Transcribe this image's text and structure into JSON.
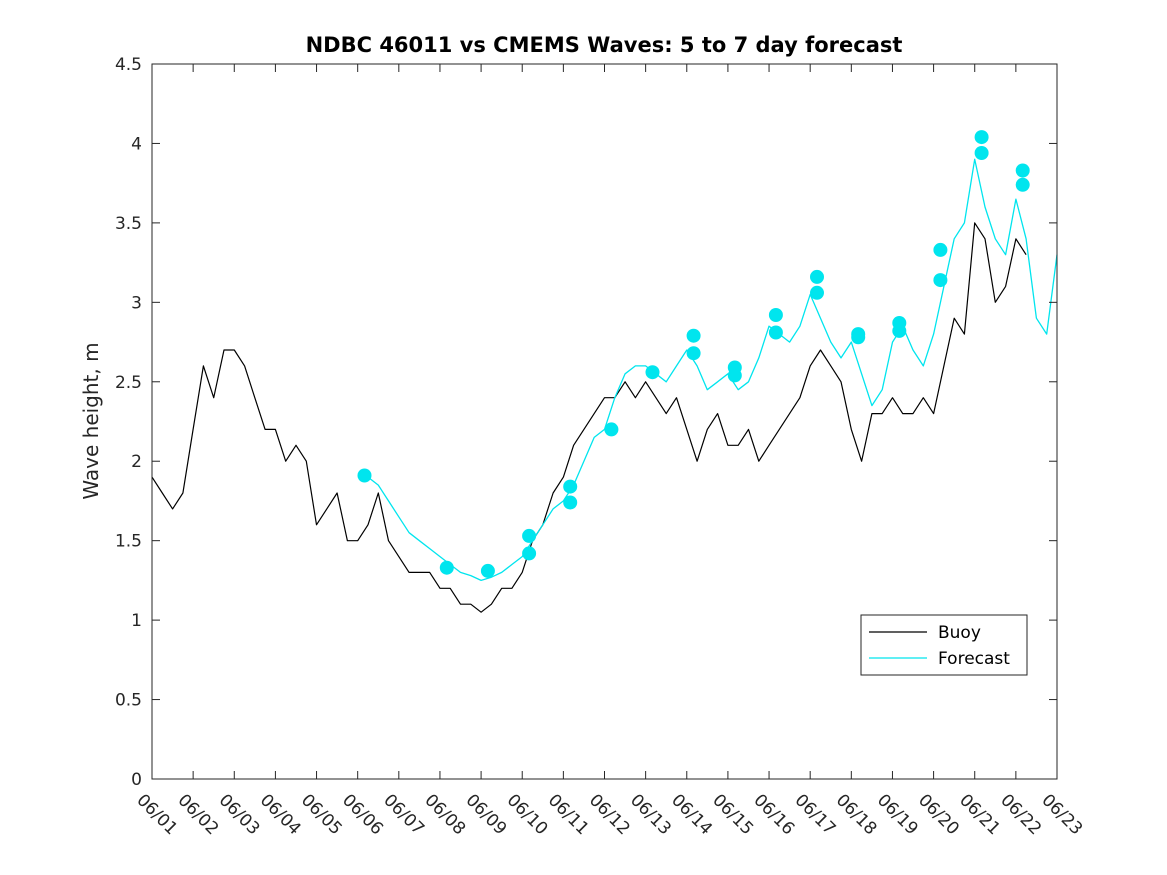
{
  "chart_data": {
    "type": "line",
    "title": "NDBC 46011 vs CMEMS Waves: 5 to 7 day forecast",
    "ylabel": "Wave height, m",
    "xlabel": "",
    "x_is_date": true,
    "xlim": [
      "06/01",
      "06/23"
    ],
    "ylim": [
      0,
      4.5
    ],
    "x_tick_labels": [
      "06/01",
      "06/02",
      "06/03",
      "06/04",
      "06/05",
      "06/06",
      "06/07",
      "06/08",
      "06/09",
      "06/10",
      "06/11",
      "06/12",
      "06/13",
      "06/14",
      "06/15",
      "06/16",
      "06/17",
      "06/18",
      "06/19",
      "06/20",
      "06/21",
      "06/22",
      "06/23"
    ],
    "y_tick_labels": [
      "0",
      "0.5",
      "1",
      "1.5",
      "2",
      "2.5",
      "3",
      "3.5",
      "4",
      "4.5"
    ],
    "grid": false,
    "legend": {
      "position": "bottom-right",
      "entries": [
        {
          "label": "Buoy",
          "color": "#000000"
        },
        {
          "label": "Forecast",
          "color": "#00e5ee"
        }
      ]
    },
    "series": [
      {
        "name": "Buoy",
        "color": "#000000",
        "x": [
          "06/01 00:00",
          "06/01 06:00",
          "06/01 12:00",
          "06/01 18:00",
          "06/02 00:00",
          "06/02 06:00",
          "06/02 12:00",
          "06/02 18:00",
          "06/03 00:00",
          "06/03 06:00",
          "06/03 12:00",
          "06/03 18:00",
          "06/04 00:00",
          "06/04 06:00",
          "06/04 12:00",
          "06/04 18:00",
          "06/05 00:00",
          "06/05 06:00",
          "06/05 12:00",
          "06/05 18:00",
          "06/06 00:00",
          "06/06 06:00",
          "06/06 12:00",
          "06/06 18:00",
          "06/07 00:00",
          "06/07 06:00",
          "06/07 12:00",
          "06/07 18:00",
          "06/08 00:00",
          "06/08 06:00",
          "06/08 12:00",
          "06/08 18:00",
          "06/09 00:00",
          "06/09 06:00",
          "06/09 12:00",
          "06/09 18:00",
          "06/10 00:00",
          "06/10 06:00",
          "06/10 12:00",
          "06/10 18:00",
          "06/11 00:00",
          "06/11 06:00",
          "06/11 12:00",
          "06/11 18:00",
          "06/12 00:00",
          "06/12 06:00",
          "06/12 12:00",
          "06/12 18:00",
          "06/13 00:00",
          "06/13 06:00",
          "06/13 12:00",
          "06/13 18:00",
          "06/14 00:00",
          "06/14 06:00",
          "06/14 12:00",
          "06/14 18:00",
          "06/15 00:00",
          "06/15 06:00",
          "06/15 12:00",
          "06/15 18:00",
          "06/16 00:00",
          "06/16 06:00",
          "06/16 12:00",
          "06/16 18:00",
          "06/17 00:00",
          "06/17 06:00",
          "06/17 12:00",
          "06/17 18:00",
          "06/18 00:00",
          "06/18 06:00",
          "06/18 12:00",
          "06/18 18:00",
          "06/19 00:00",
          "06/19 06:00",
          "06/19 12:00",
          "06/19 18:00",
          "06/20 00:00",
          "06/20 06:00",
          "06/20 12:00",
          "06/20 18:00",
          "06/21 00:00",
          "06/21 06:00",
          "06/21 12:00",
          "06/21 18:00",
          "06/22 00:00",
          "06/22 06:00",
          "06/22 12:00",
          "06/22 18:00",
          "06/23 00:00"
        ],
        "y": [
          1.9,
          1.8,
          1.7,
          1.8,
          2.2,
          2.6,
          2.4,
          2.7,
          2.7,
          2.6,
          2.4,
          2.2,
          2.2,
          2.0,
          2.1,
          2.0,
          1.6,
          1.7,
          1.8,
          1.5,
          1.5,
          1.6,
          1.8,
          1.5,
          1.4,
          1.3,
          1.3,
          1.3,
          1.2,
          1.2,
          1.1,
          1.1,
          1.05,
          1.1,
          1.2,
          1.2,
          1.3,
          1.5,
          1.6,
          1.8,
          1.9,
          2.1,
          2.2,
          2.3,
          2.4,
          2.4,
          2.5,
          2.4,
          2.5,
          2.4,
          2.3,
          2.4,
          2.2,
          2.0,
          2.2,
          2.3,
          2.1,
          2.1,
          2.2,
          2.0,
          2.1,
          2.2,
          2.3,
          2.4,
          2.6,
          2.7,
          2.6,
          2.5,
          2.2,
          2.0,
          2.3,
          2.3,
          2.4,
          2.3,
          2.3,
          2.4,
          2.3,
          2.6,
          2.9,
          2.8,
          3.5,
          3.4,
          3.0,
          3.1,
          3.4,
          3.3,
          null,
          null,
          null
        ]
      },
      {
        "name": "Forecast",
        "color": "#00e5ee",
        "x": [
          "06/06 00:00",
          "06/06 06:00",
          "06/06 12:00",
          "06/06 18:00",
          "06/07 00:00",
          "06/07 06:00",
          "06/07 12:00",
          "06/07 18:00",
          "06/08 00:00",
          "06/08 06:00",
          "06/08 12:00",
          "06/08 18:00",
          "06/09 00:00",
          "06/09 06:00",
          "06/09 12:00",
          "06/09 18:00",
          "06/10 00:00",
          "06/10 06:00",
          "06/10 12:00",
          "06/10 18:00",
          "06/11 00:00",
          "06/11 06:00",
          "06/11 12:00",
          "06/11 18:00",
          "06/12 00:00",
          "06/12 06:00",
          "06/12 12:00",
          "06/12 18:00",
          "06/13 00:00",
          "06/13 06:00",
          "06/13 12:00",
          "06/13 18:00",
          "06/14 00:00",
          "06/14 06:00",
          "06/14 12:00",
          "06/14 18:00",
          "06/15 00:00",
          "06/15 06:00",
          "06/15 12:00",
          "06/15 18:00",
          "06/16 00:00",
          "06/16 06:00",
          "06/16 12:00",
          "06/16 18:00",
          "06/17 00:00",
          "06/17 06:00",
          "06/17 12:00",
          "06/17 18:00",
          "06/18 00:00",
          "06/18 06:00",
          "06/18 12:00",
          "06/18 18:00",
          "06/19 00:00",
          "06/19 06:00",
          "06/19 12:00",
          "06/19 18:00",
          "06/20 00:00",
          "06/20 06:00",
          "06/20 12:00",
          "06/20 18:00",
          "06/21 00:00",
          "06/21 06:00",
          "06/21 12:00",
          "06/21 18:00",
          "06/22 00:00",
          "06/22 06:00",
          "06/22 12:00",
          "06/22 18:00",
          "06/23 00:00"
        ],
        "y": [
          null,
          1.9,
          1.85,
          1.75,
          1.65,
          1.55,
          1.5,
          1.45,
          1.4,
          1.35,
          1.3,
          1.28,
          1.25,
          1.27,
          1.3,
          1.35,
          1.4,
          1.5,
          1.6,
          1.7,
          1.75,
          1.85,
          2.0,
          2.15,
          2.2,
          2.4,
          2.55,
          2.6,
          2.6,
          2.55,
          2.5,
          2.6,
          2.7,
          2.6,
          2.45,
          2.5,
          2.55,
          2.45,
          2.5,
          2.65,
          2.85,
          2.8,
          2.75,
          2.85,
          3.05,
          2.9,
          2.75,
          2.65,
          2.75,
          2.55,
          2.35,
          2.45,
          2.75,
          2.85,
          2.7,
          2.6,
          2.8,
          3.1,
          3.4,
          3.5,
          3.9,
          3.6,
          3.4,
          3.3,
          3.65,
          3.4,
          2.9,
          2.8,
          3.3
        ]
      }
    ],
    "markers": {
      "series": "Forecast",
      "color": "#00e5ee",
      "points": [
        {
          "x": "06/06 04:00",
          "y": 1.91
        },
        {
          "x": "06/08 04:00",
          "y": 1.33
        },
        {
          "x": "06/09 04:00",
          "y": 1.31
        },
        {
          "x": "06/10 04:00",
          "y": 1.42
        },
        {
          "x": "06/10 04:00",
          "y": 1.53
        },
        {
          "x": "06/11 04:00",
          "y": 1.74
        },
        {
          "x": "06/11 04:00",
          "y": 1.84
        },
        {
          "x": "06/12 04:00",
          "y": 2.2
        },
        {
          "x": "06/13 04:00",
          "y": 2.56
        },
        {
          "x": "06/14 04:00",
          "y": 2.68
        },
        {
          "x": "06/14 04:00",
          "y": 2.79
        },
        {
          "x": "06/15 04:00",
          "y": 2.54
        },
        {
          "x": "06/15 04:00",
          "y": 2.59
        },
        {
          "x": "06/16 04:00",
          "y": 2.81
        },
        {
          "x": "06/16 04:00",
          "y": 2.92
        },
        {
          "x": "06/17 04:00",
          "y": 3.06
        },
        {
          "x": "06/17 04:00",
          "y": 3.16
        },
        {
          "x": "06/18 04:00",
          "y": 2.78
        },
        {
          "x": "06/18 04:00",
          "y": 2.8
        },
        {
          "x": "06/19 04:00",
          "y": 2.82
        },
        {
          "x": "06/19 04:00",
          "y": 2.87
        },
        {
          "x": "06/20 04:00",
          "y": 3.14
        },
        {
          "x": "06/20 04:00",
          "y": 3.33
        },
        {
          "x": "06/21 04:00",
          "y": 3.94
        },
        {
          "x": "06/21 04:00",
          "y": 4.04
        },
        {
          "x": "06/22 04:00",
          "y": 3.74
        },
        {
          "x": "06/22 04:00",
          "y": 3.83
        }
      ]
    }
  }
}
